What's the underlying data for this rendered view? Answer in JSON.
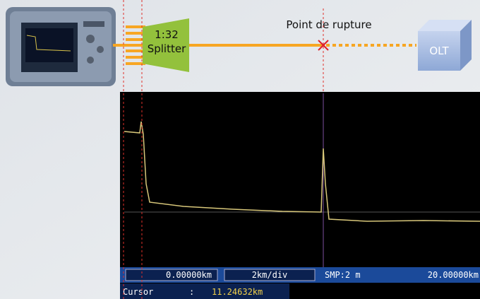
{
  "diagram": {
    "splitter": {
      "ratio": "1:32",
      "label": "Splitter"
    },
    "break_label": "Point de rupture",
    "olt_label": "OLT"
  },
  "otdr": {
    "status": [
      "0.00000km",
      "2km/div",
      "SMP:2 m",
      "20.00000km"
    ],
    "cursor": {
      "label": "Cursor",
      "separator": ":",
      "value": "11.24632km"
    }
  }
}
